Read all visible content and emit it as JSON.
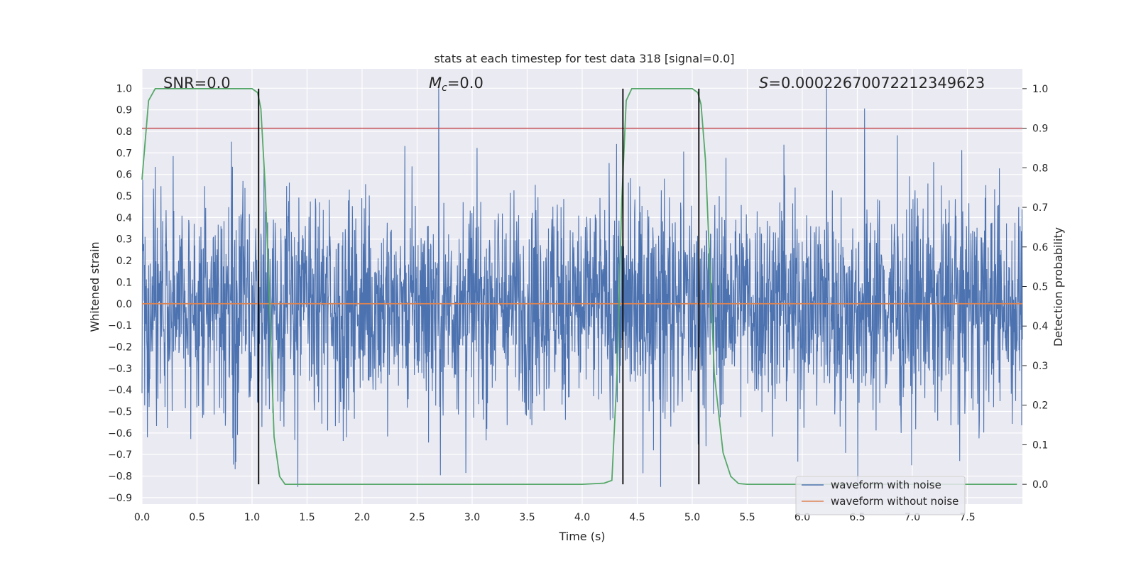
{
  "chart_data": {
    "type": "line",
    "title": "stats at each timestep for test data 318 [signal=0.0]",
    "xlabel": "Time (s)",
    "ylabel": "Whitened strain",
    "ylabel_right": "Detection probability",
    "xlim": [
      0.0,
      8.0
    ],
    "ylim": [
      -0.93,
      1.09
    ],
    "ylim_right": [
      -0.05,
      1.05
    ],
    "x_ticks": [
      "0.0",
      "0.5",
      "1.0",
      "1.5",
      "2.0",
      "2.5",
      "3.0",
      "3.5",
      "4.0",
      "4.5",
      "5.0",
      "5.5",
      "6.0",
      "6.5",
      "7.0",
      "7.5"
    ],
    "y_ticks": [
      "1.0",
      "0.9",
      "0.8",
      "0.7",
      "0.6",
      "0.5",
      "0.4",
      "0.3",
      "0.2",
      "0.1",
      "0.0",
      "-0.1",
      "-0.2",
      "-0.3",
      "-0.4",
      "-0.5",
      "-0.6",
      "-0.7",
      "-0.8",
      "-0.9"
    ],
    "y_right_ticks": [
      "1.0",
      "0.9",
      "0.8",
      "0.7",
      "0.6",
      "0.5",
      "0.4",
      "0.3",
      "0.2",
      "0.1",
      "0.0"
    ],
    "annotations": {
      "snr": "SNR=0.0",
      "mc_symbol": "M",
      "mc_sub": "c",
      "mc_value": "=0.0",
      "s_symbol": "S",
      "s_value": "=0.00022670072212349623"
    },
    "series": [
      {
        "name": "waveform with noise",
        "color": "#4c72b0",
        "kind": "dense noise, typical amplitude ±0.45, peaks up to 1.0 / -0.85",
        "noise_amplitude": 0.45
      },
      {
        "name": "waveform without noise",
        "color": "#dd8452",
        "values_constant": 0.0
      }
    ],
    "threshold": {
      "color": "#c44e52",
      "right_axis_value": 0.9
    },
    "detection_probability": {
      "color": "#55a868",
      "x": [
        0.0,
        0.06,
        0.12,
        0.3,
        0.6,
        0.9,
        1.0,
        1.05,
        1.08,
        1.12,
        1.16,
        1.2,
        1.25,
        1.3,
        1.5,
        2.0,
        2.5,
        3.0,
        3.5,
        4.0,
        4.2,
        4.27,
        4.32,
        4.36,
        4.4,
        4.45,
        4.6,
        4.9,
        5.0,
        5.05,
        5.08,
        5.12,
        5.16,
        5.2,
        5.28,
        5.35,
        5.42,
        5.5,
        6.0,
        7.0,
        7.95
      ],
      "y": [
        0.77,
        0.97,
        1.0,
        1.0,
        1.0,
        1.0,
        1.0,
        0.99,
        0.95,
        0.75,
        0.45,
        0.12,
        0.02,
        0.0,
        0.0,
        0.0,
        0.0,
        0.0,
        0.0,
        0.0,
        0.003,
        0.01,
        0.3,
        0.72,
        0.97,
        1.0,
        1.0,
        1.0,
        1.0,
        0.99,
        0.96,
        0.82,
        0.55,
        0.28,
        0.08,
        0.02,
        0.002,
        0.0,
        0.0,
        0.0,
        0.0
      ]
    },
    "vertical_lines": {
      "color": "#000000",
      "x": [
        1.06,
        4.37,
        5.06
      ]
    },
    "legend": {
      "placement": "lower-right",
      "entries": [
        "waveform with noise",
        "waveform without noise"
      ]
    },
    "grid": true,
    "background": "#eaeaf2"
  }
}
